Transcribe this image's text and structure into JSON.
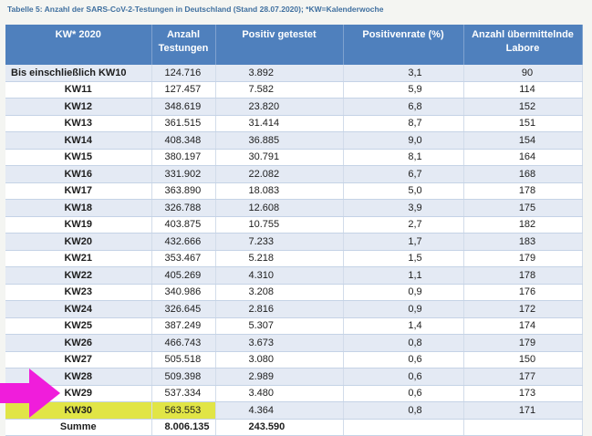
{
  "caption": "Tabelle 5: Anzahl der SARS-CoV-2-Testungen in Deutschland (Stand 28.07.2020); *KW=Kalenderwoche",
  "table": {
    "headers": [
      "KW* 2020",
      "Anzahl Testungen",
      "Positiv getestet",
      "Positivenrate (%)",
      "Anzahl übermittelnde Labore"
    ],
    "rows": [
      [
        "Bis einschließlich KW10",
        "124.716",
        "3.892",
        "3,1",
        "90"
      ],
      [
        "KW11",
        "127.457",
        "7.582",
        "5,9",
        "114"
      ],
      [
        "KW12",
        "348.619",
        "23.820",
        "6,8",
        "152"
      ],
      [
        "KW13",
        "361.515",
        "31.414",
        "8,7",
        "151"
      ],
      [
        "KW14",
        "408.348",
        "36.885",
        "9,0",
        "154"
      ],
      [
        "KW15",
        "380.197",
        "30.791",
        "8,1",
        "164"
      ],
      [
        "KW16",
        "331.902",
        "22.082",
        "6,7",
        "168"
      ],
      [
        "KW17",
        "363.890",
        "18.083",
        "5,0",
        "178"
      ],
      [
        "KW18",
        "326.788",
        "12.608",
        "3,9",
        "175"
      ],
      [
        "KW19",
        "403.875",
        "10.755",
        "2,7",
        "182"
      ],
      [
        "KW20",
        "432.666",
        "7.233",
        "1,7",
        "183"
      ],
      [
        "KW21",
        "353.467",
        "5.218",
        "1,5",
        "179"
      ],
      [
        "KW22",
        "405.269",
        "4.310",
        "1,1",
        "178"
      ],
      [
        "KW23",
        "340.986",
        "3.208",
        "0,9",
        "176"
      ],
      [
        "KW24",
        "326.645",
        "2.816",
        "0,9",
        "172"
      ],
      [
        "KW25",
        "387.249",
        "5.307",
        "1,4",
        "174"
      ],
      [
        "KW26",
        "466.743",
        "3.673",
        "0,8",
        "179"
      ],
      [
        "KW27",
        "505.518",
        "3.080",
        "0,6",
        "150"
      ],
      [
        "KW28",
        "509.398",
        "2.989",
        "0,6",
        "177"
      ],
      [
        "KW29",
        "537.334",
        "3.480",
        "0,6",
        "173"
      ],
      [
        "KW30",
        "563.553",
        "4.364",
        "0,8",
        "171"
      ]
    ],
    "highlight_row": "KW30",
    "highlight_color": "#e1e546",
    "sum": [
      "Summe",
      "8.006.135",
      "243.590",
      "",
      ""
    ]
  },
  "arrow_color": "#f01ddb",
  "header_color": "#4f80bd"
}
